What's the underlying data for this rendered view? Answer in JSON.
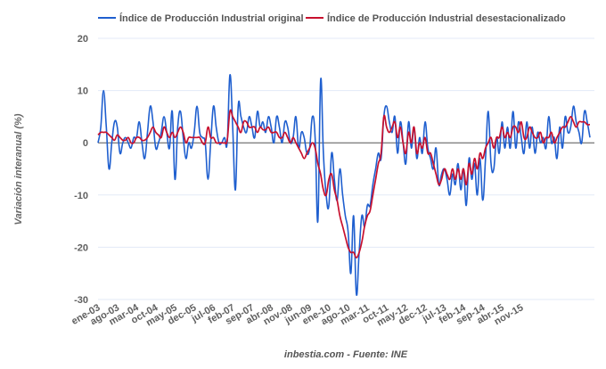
{
  "chart_data": {
    "type": "line",
    "title": "",
    "xlabel": "",
    "ylabel": "Variación interanual (%)",
    "ylim": [
      -30,
      20
    ],
    "yticks": [
      20,
      10,
      0,
      -10,
      -20,
      -30
    ],
    "grid": true,
    "legend_position": "top",
    "credit": "inbestia.com - Fuente: INE",
    "x_start": "2003-01",
    "x_end": "2015-11",
    "xtick_labels": [
      "ene-03",
      "ago-03",
      "mar-04",
      "oct-04",
      "may-05",
      "dec-05",
      "jul-06",
      "feb-07",
      "sep-07",
      "abr-08",
      "nov-08",
      "jun-09",
      "ene-10",
      "ago-10",
      "mar-11",
      "oct-11",
      "may-12",
      "dec-12",
      "jul-13",
      "feb-14",
      "sep-14",
      "abr-15",
      "nov-15"
    ],
    "series": [
      {
        "name": "Índice de Producción Industrial original",
        "color": "#1f5fcf",
        "values": [
          0,
          3,
          10,
          3,
          -5,
          0,
          4,
          3,
          -2,
          0,
          1,
          0,
          -1,
          1,
          1,
          4,
          0,
          -3,
          2,
          7,
          4,
          -1,
          0,
          2,
          5,
          2,
          -1,
          6,
          -7,
          3,
          6,
          1,
          -3,
          0,
          -1,
          2,
          7,
          2,
          1,
          0,
          -7,
          0,
          7,
          3,
          0,
          0,
          1,
          0,
          13,
          3,
          -9,
          7,
          5,
          3,
          2,
          5,
          3,
          1,
          6,
          3,
          4,
          2,
          5,
          3,
          0,
          5,
          3,
          0,
          4,
          3,
          0,
          1,
          5,
          -1,
          2,
          1,
          -2,
          -1,
          5,
          1,
          -15,
          12,
          -2,
          -10,
          -12,
          -2,
          -7,
          -11,
          -5,
          -10,
          -14,
          -17,
          -25,
          -14,
          -29,
          -21,
          -14,
          -16,
          -12,
          -12,
          -8,
          -5,
          -2,
          -3,
          5,
          7,
          4,
          2,
          5,
          -2,
          4,
          0,
          -4,
          4,
          -1,
          3,
          -3,
          1,
          -2,
          4,
          -1,
          -3,
          -5,
          -1,
          -8,
          -6,
          -5,
          -7,
          -10,
          -6,
          -8,
          -4,
          -9,
          -5,
          -12,
          -3,
          -7,
          -4,
          -10,
          -3,
          -11,
          -3,
          6,
          -4,
          -5,
          1,
          -2,
          4,
          -1,
          3,
          -1,
          6,
          -1,
          4,
          1,
          -2,
          4,
          -1,
          3,
          -2,
          2,
          0,
          1,
          -1,
          5,
          0,
          1,
          -3,
          3,
          -1,
          5,
          2,
          3,
          7,
          4,
          2,
          0,
          6,
          4,
          1
        ]
      },
      {
        "name": "Índice de Producción Industrial desestacionalizado",
        "color": "#c8102e",
        "values": [
          1.5,
          2,
          2,
          2,
          1.5,
          1,
          0.5,
          1.5,
          1,
          0.5,
          0.5,
          1,
          0,
          0,
          1,
          1,
          0.5,
          0.5,
          1,
          2,
          3,
          2,
          1.5,
          1,
          3,
          2,
          1,
          2,
          1,
          2,
          3,
          2,
          0,
          1,
          1,
          1,
          1,
          1,
          0,
          0,
          3,
          1,
          1,
          0,
          0,
          0,
          0,
          0.5,
          6,
          5,
          4,
          3,
          2,
          4,
          4,
          3,
          3,
          3,
          2,
          3,
          2.5,
          2.5,
          3,
          2,
          2,
          2,
          1,
          1,
          2,
          1,
          0,
          1,
          0,
          -1,
          -2,
          -3,
          -2,
          -1,
          0,
          -1,
          -4,
          -6,
          -9,
          -10,
          -7,
          -6,
          -9,
          -11,
          -14,
          -16,
          -18,
          -20,
          -21,
          -21,
          -22,
          -21,
          -19,
          -16,
          -14,
          -13,
          -10,
          -7,
          -4,
          -2,
          5,
          3,
          2,
          3,
          4,
          1,
          3,
          0,
          -2,
          2,
          0,
          3,
          -2,
          0,
          -1,
          1,
          -2,
          -2,
          -4,
          -6,
          -8,
          -7,
          -5,
          -6,
          -7,
          -5,
          -7,
          -5,
          -7,
          -5,
          -8,
          -4,
          -6,
          -3,
          -5,
          -2,
          -3,
          -1,
          0,
          1,
          -1,
          1,
          1,
          3,
          1,
          2,
          1,
          3,
          3,
          2,
          4,
          1,
          1,
          3,
          2,
          1,
          1,
          2,
          0,
          1,
          1,
          2,
          0,
          1,
          2,
          3,
          3,
          4,
          5,
          4,
          3,
          4,
          4,
          4,
          3.5,
          3.5
        ]
      }
    ]
  }
}
